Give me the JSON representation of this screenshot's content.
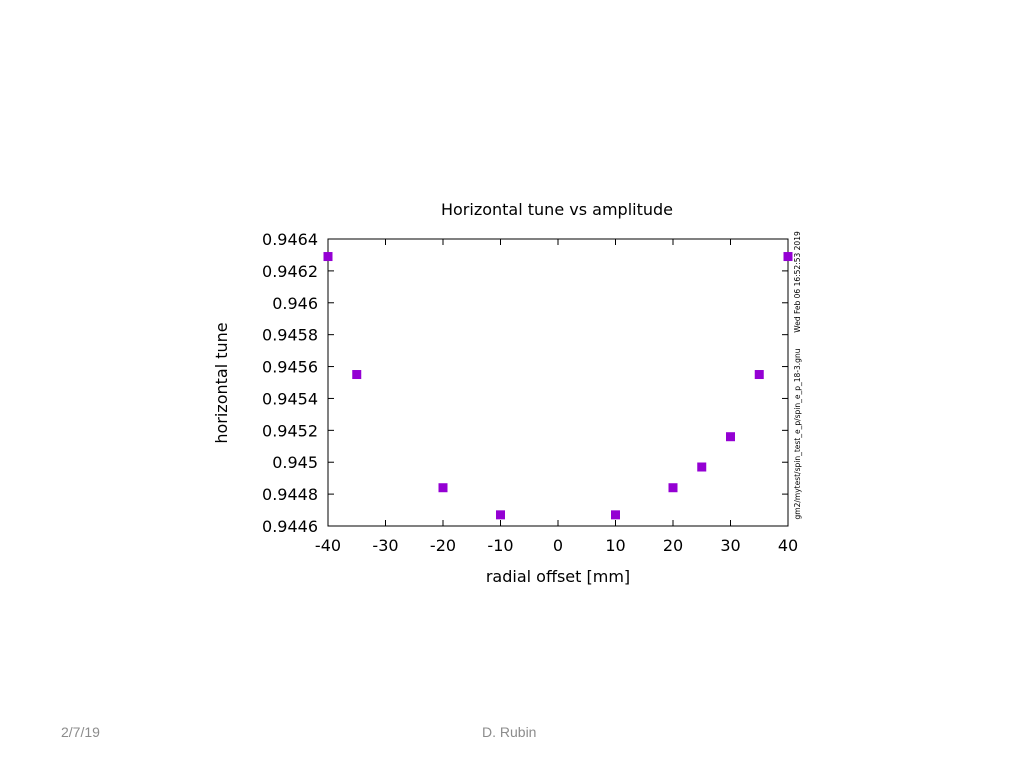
{
  "chart_data": {
    "type": "scatter",
    "title": "Horizontal tune vs amplitude",
    "xlabel": "radial offset [mm]",
    "ylabel": "horizontal tune",
    "xlim": [
      -40,
      40
    ],
    "ylim": [
      0.9446,
      0.9464
    ],
    "xticks": [
      -40,
      -30,
      -20,
      -10,
      0,
      10,
      20,
      30,
      40
    ],
    "yticks": [
      "0.9446",
      "0.9448",
      "0.945",
      "0.9452",
      "0.9454",
      "0.9456",
      "0.9458",
      "0.946",
      "0.9462",
      "0.9464"
    ],
    "grid": false,
    "marker": "square",
    "point_color": "#9400d3",
    "x": [
      -40,
      -35,
      -20,
      -10,
      10,
      20,
      25,
      30,
      35,
      40
    ],
    "y": [
      0.94629,
      0.94555,
      0.94484,
      0.94467,
      0.94467,
      0.94484,
      0.94497,
      0.94516,
      0.94555,
      0.94629
    ],
    "side_label": "gm2/mytest/spin_test_e_p/spin_e_p_18-3.gnu",
    "side_timestamp": "Wed Feb 06 16:52:53 2019"
  },
  "footer": {
    "date": "2/7/19",
    "author": "D. Rubin"
  }
}
